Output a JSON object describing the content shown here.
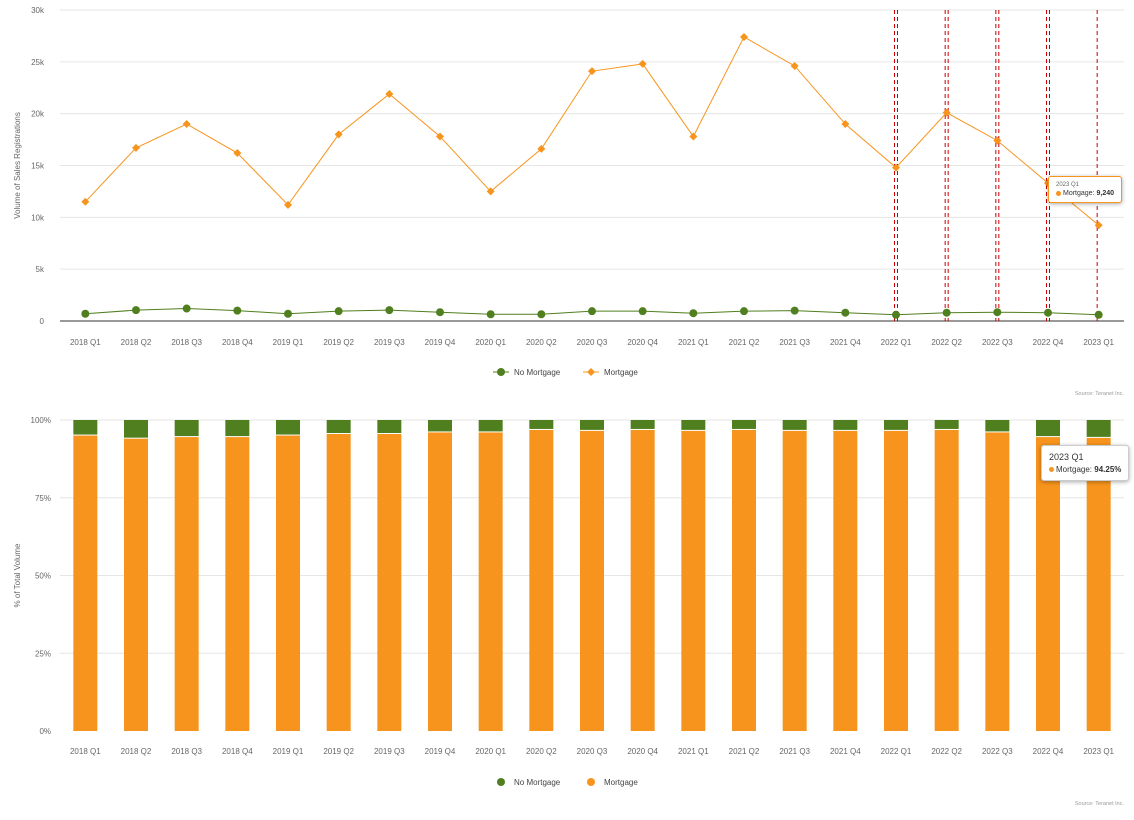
{
  "colors": {
    "no_mortgage": "#4f7f1e",
    "mortgage": "#f7941d",
    "grid": "#e6e6e6",
    "crosshair": "#cc0000"
  },
  "chart_data": [
    {
      "type": "line",
      "ylabel": "Volume of Sales Registrations",
      "yticks": [
        "0",
        "5k",
        "10k",
        "15k",
        "20k",
        "25k",
        "30k"
      ],
      "ylim": [
        0,
        30000
      ],
      "categories": [
        "2018 Q1",
        "2018 Q2",
        "2018 Q3",
        "2018 Q4",
        "2019 Q1",
        "2019 Q2",
        "2019 Q3",
        "2019 Q4",
        "2020 Q1",
        "2020 Q2",
        "2020 Q3",
        "2020 Q4",
        "2021 Q1",
        "2021 Q2",
        "2021 Q3",
        "2021 Q4",
        "2022 Q1",
        "2022 Q2",
        "2022 Q3",
        "2022 Q4",
        "2023 Q1"
      ],
      "series": [
        {
          "name": "No Mortgage",
          "marker": "circle",
          "values": [
            700,
            1050,
            1200,
            1000,
            700,
            950,
            1050,
            850,
            650,
            650,
            950,
            950,
            750,
            950,
            1000,
            800,
            600,
            800,
            850,
            800,
            600
          ]
        },
        {
          "name": "Mortgage",
          "marker": "diamond",
          "values": [
            11500,
            16700,
            19000,
            16200,
            11200,
            18000,
            21900,
            17800,
            12500,
            16600,
            24100,
            24800,
            17800,
            27400,
            24600,
            19000,
            14800,
            20100,
            17400,
            13300,
            9240
          ]
        }
      ],
      "crosshair_categories": [
        "2022 Q1",
        "2022 Q2",
        "2022 Q3",
        "2022 Q4",
        "2023 Q1"
      ],
      "legend_position": "bottom-center",
      "grid": true,
      "source": "Source: Teranet Inc.",
      "tooltip": {
        "category": "2023 Q1",
        "series": "Mortgage",
        "label": "Mortgage:",
        "value": "9,240"
      }
    },
    {
      "type": "bar",
      "stacked": "percent",
      "ylabel": "% of Total Volume",
      "yticks": [
        "0%",
        "25%",
        "50%",
        "75%",
        "100%"
      ],
      "ylim": [
        0,
        100
      ],
      "categories": [
        "2018 Q1",
        "2018 Q2",
        "2018 Q3",
        "2018 Q4",
        "2019 Q1",
        "2019 Q2",
        "2019 Q3",
        "2019 Q4",
        "2020 Q1",
        "2020 Q2",
        "2020 Q3",
        "2020 Q4",
        "2021 Q1",
        "2021 Q2",
        "2021 Q3",
        "2021 Q4",
        "2022 Q1",
        "2022 Q2",
        "2022 Q3",
        "2022 Q4",
        "2023 Q1"
      ],
      "series": [
        {
          "name": "Mortgage",
          "values": [
            95.0,
            94.0,
            94.5,
            94.5,
            95.0,
            95.5,
            95.5,
            96.0,
            96.0,
            96.8,
            96.5,
            96.8,
            96.5,
            96.8,
            96.5,
            96.5,
            96.5,
            96.8,
            96.0,
            94.5,
            94.25
          ]
        },
        {
          "name": "No Mortgage",
          "values": [
            5.0,
            6.0,
            5.5,
            5.5,
            5.0,
            4.5,
            4.5,
            4.0,
            4.0,
            3.2,
            3.5,
            3.2,
            3.5,
            3.2,
            3.5,
            3.5,
            3.5,
            3.2,
            4.0,
            5.5,
            5.75
          ]
        }
      ],
      "legend_position": "bottom-center",
      "grid": true,
      "source": "Source: Teranet Inc.",
      "tooltip": {
        "category": "2023 Q1",
        "series": "Mortgage",
        "label": "Mortgage:",
        "value": "94.25%"
      }
    }
  ]
}
